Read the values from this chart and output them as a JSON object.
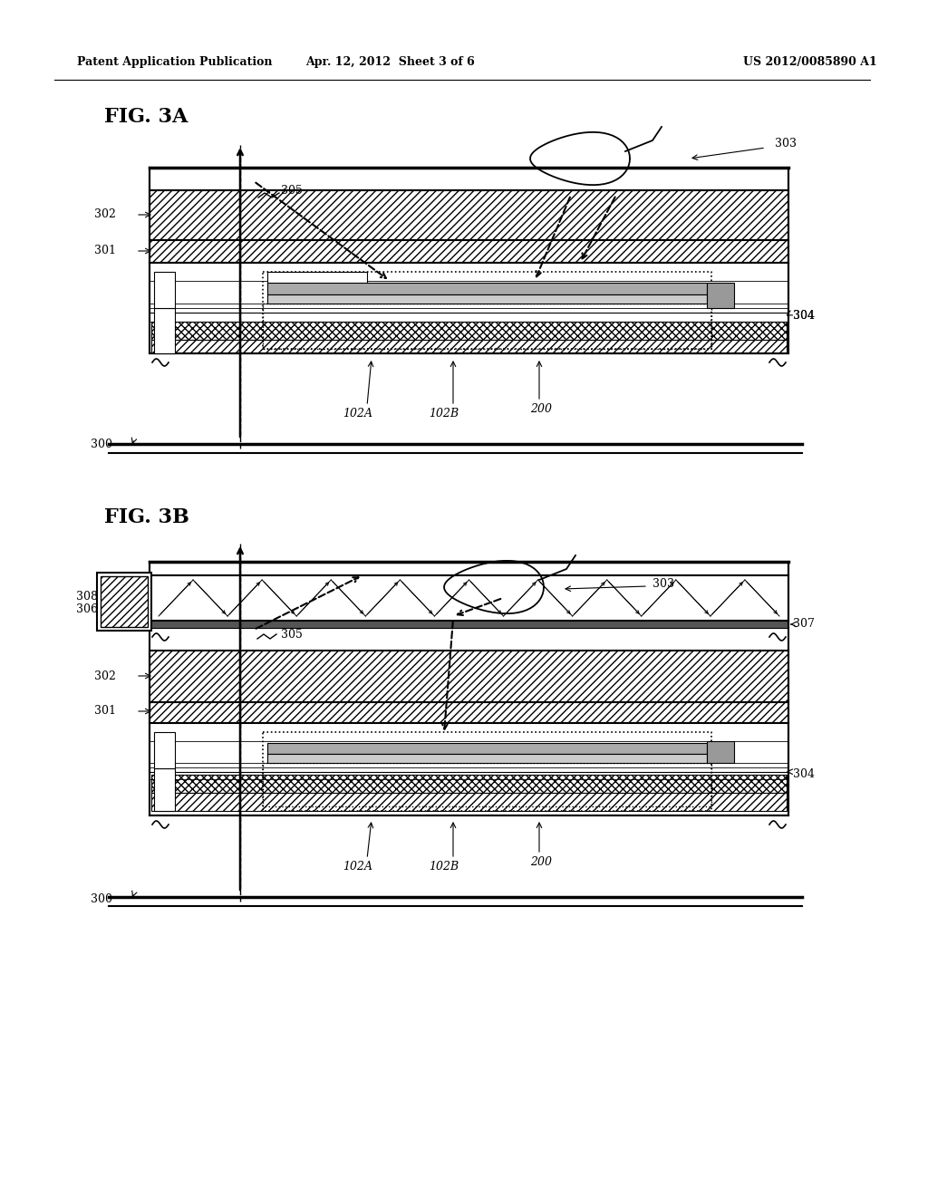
{
  "header_left": "Patent Application Publication",
  "header_mid": "Apr. 12, 2012  Sheet 3 of 6",
  "header_right": "US 2012/0085890 A1",
  "fig3a_label": "FIG. 3A",
  "fig3b_label": "FIG. 3B",
  "bg_color": "#ffffff",
  "line_color": "#000000"
}
